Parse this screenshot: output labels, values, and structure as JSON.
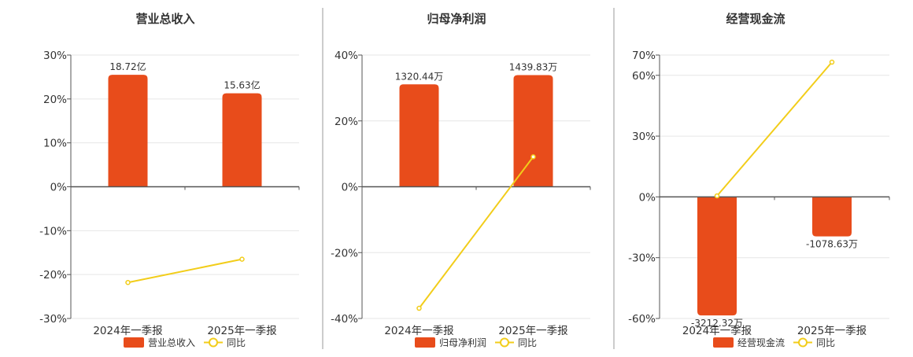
{
  "chart_data": [
    {
      "type": "bar",
      "title": "营业总收入",
      "categories": [
        "2024年一季报",
        "2025年一季报"
      ],
      "yticks": [
        "30%",
        "20%",
        "10%",
        "0%",
        "-10%",
        "-20%",
        "-30%"
      ],
      "ylim": [
        -30,
        30
      ],
      "grid": true,
      "legend_position": "bottom",
      "bars": {
        "name": "营业总收入",
        "values": [
          25.5,
          21.3
        ],
        "labels": [
          "18.72亿",
          "15.63亿"
        ]
      },
      "line": {
        "name": "同比",
        "values": [
          -21.8,
          -16.5
        ]
      }
    },
    {
      "type": "bar",
      "title": "归母净利润",
      "categories": [
        "2024年一季报",
        "2025年一季报"
      ],
      "yticks": [
        "40%",
        "20%",
        "0%",
        "-20%",
        "-40%"
      ],
      "ylim": [
        -40,
        40
      ],
      "grid": true,
      "legend_position": "bottom",
      "bars": {
        "name": "归母净利润",
        "values": [
          31.1,
          33.9
        ],
        "labels": [
          "1320.44万",
          "1439.83万"
        ]
      },
      "line": {
        "name": "同比",
        "values": [
          -36.9,
          9.1
        ]
      }
    },
    {
      "type": "bar",
      "title": "经营现金流",
      "categories": [
        "2024年一季报",
        "2025年一季报"
      ],
      "yticks": [
        "70%",
        "60%",
        "30%",
        "0%",
        "-30%",
        "-60%"
      ],
      "ylim": [
        -60,
        70
      ],
      "grid": true,
      "legend_position": "bottom",
      "bars": {
        "name": "经营现金流",
        "values": [
          -58.5,
          -19.5
        ],
        "labels": [
          "-3212.32万",
          "-1078.63万"
        ]
      },
      "line": {
        "name": "同比",
        "values": [
          0.5,
          66.5
        ]
      }
    }
  ],
  "colors": {
    "bar": "#E84C1B",
    "line": "#F2CD1A",
    "axis": "#555555",
    "grid": "#E6E6E6",
    "divider": "#999999",
    "text": "#333333"
  }
}
